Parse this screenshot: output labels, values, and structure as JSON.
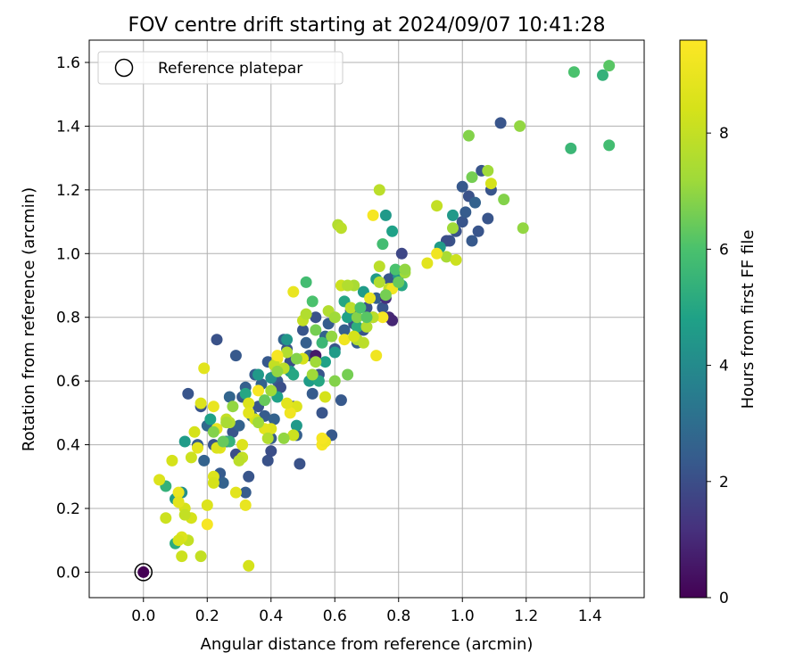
{
  "chart_data": {
    "type": "scatter",
    "title": "FOV centre drift starting at 2024/09/07 10:41:28",
    "xlabel": "Angular distance from reference (arcmin)",
    "ylabel": "Rotation from reference (arcmin)",
    "xlim": [
      -0.17,
      1.57
    ],
    "ylim": [
      -0.08,
      1.67
    ],
    "xticks": [
      0.0,
      0.2,
      0.4,
      0.6,
      0.8,
      1.0,
      1.2,
      1.4
    ],
    "yticks": [
      0.0,
      0.2,
      0.4,
      0.6,
      0.8,
      1.0,
      1.2,
      1.4,
      1.6
    ],
    "xtick_labels": [
      "0.0",
      "0.2",
      "0.4",
      "0.6",
      "0.8",
      "1.0",
      "1.2",
      "1.4"
    ],
    "ytick_labels": [
      "0.0",
      "0.2",
      "0.4",
      "0.6",
      "0.8",
      "1.0",
      "1.2",
      "1.4",
      "1.6"
    ],
    "grid": true,
    "legend": {
      "label": "Reference platepar",
      "position": "top-left"
    },
    "colorbar": {
      "label": "Hours from first FF file",
      "range": [
        0,
        9.6
      ],
      "ticks": [
        0,
        2,
        4,
        6,
        8
      ],
      "tick_labels": [
        "0",
        "2",
        "4",
        "6",
        "8"
      ],
      "colormap": "viridis"
    },
    "reference_point": {
      "x": 0.0,
      "y": 0.0,
      "hours": 0.0
    },
    "points": [
      [
        0.14,
        0.56,
        2.2
      ],
      [
        0.17,
        0.4,
        2.4
      ],
      [
        0.18,
        0.52,
        2.2
      ],
      [
        0.19,
        0.35,
        2.6
      ],
      [
        0.2,
        0.46,
        2.8
      ],
      [
        0.22,
        0.4,
        2.2
      ],
      [
        0.23,
        0.73,
        2.1
      ],
      [
        0.24,
        0.31,
        2.4
      ],
      [
        0.25,
        0.28,
        2.6
      ],
      [
        0.26,
        0.41,
        3.0
      ],
      [
        0.27,
        0.55,
        2.7
      ],
      [
        0.28,
        0.44,
        2.2
      ],
      [
        0.29,
        0.68,
        2.3
      ],
      [
        0.29,
        0.37,
        2.0
      ],
      [
        0.3,
        0.46,
        2.6
      ],
      [
        0.31,
        0.55,
        2.3
      ],
      [
        0.32,
        0.58,
        2.5
      ],
      [
        0.32,
        0.25,
        2.4
      ],
      [
        0.33,
        0.3,
        2.2
      ],
      [
        0.34,
        0.49,
        2.7
      ],
      [
        0.35,
        0.62,
        2.4
      ],
      [
        0.36,
        0.52,
        2.2
      ],
      [
        0.37,
        0.59,
        2.6
      ],
      [
        0.38,
        0.49,
        2.4
      ],
      [
        0.39,
        0.66,
        2.3
      ],
      [
        0.39,
        0.35,
        2.1
      ],
      [
        0.4,
        0.42,
        2.4
      ],
      [
        0.4,
        0.38,
        2.0
      ],
      [
        0.41,
        0.48,
        2.6
      ],
      [
        0.42,
        0.6,
        2.3
      ],
      [
        0.43,
        0.58,
        2.0
      ],
      [
        0.44,
        0.73,
        2.6
      ],
      [
        0.45,
        0.7,
        2.2
      ],
      [
        0.46,
        0.66,
        2.0
      ],
      [
        0.47,
        0.52,
        2.3
      ],
      [
        0.48,
        0.43,
        2.5
      ],
      [
        0.49,
        0.34,
        2.1
      ],
      [
        0.5,
        0.76,
        2.2
      ],
      [
        0.51,
        0.72,
        2.5
      ],
      [
        0.52,
        0.68,
        2.3
      ],
      [
        0.53,
        0.56,
        2.4
      ],
      [
        0.54,
        0.8,
        2.1
      ],
      [
        0.55,
        0.62,
        2.2
      ],
      [
        0.56,
        0.5,
        2.2
      ],
      [
        0.57,
        0.74,
        2.6
      ],
      [
        0.58,
        0.78,
        2.4
      ],
      [
        0.59,
        0.43,
        2.3
      ],
      [
        0.6,
        0.7,
        2.2
      ],
      [
        0.62,
        0.54,
        2.3
      ],
      [
        0.63,
        0.76,
        2.5
      ],
      [
        0.65,
        0.82,
        2.2
      ],
      [
        0.66,
        0.78,
        2.1
      ],
      [
        0.67,
        0.72,
        2.4
      ],
      [
        0.69,
        0.76,
        2.2
      ],
      [
        0.7,
        0.83,
        2.1
      ],
      [
        0.72,
        0.8,
        2.3
      ],
      [
        0.73,
        0.86,
        2.5
      ],
      [
        0.75,
        0.83,
        2.2
      ],
      [
        0.76,
        0.86,
        1.2
      ],
      [
        0.77,
        0.92,
        2.2
      ],
      [
        0.77,
        0.8,
        1.0
      ],
      [
        0.79,
        0.94,
        2.3
      ],
      [
        0.81,
        1.0,
        1.8
      ],
      [
        0.96,
        1.04,
        2.1
      ],
      [
        0.98,
        1.07,
        2.1
      ],
      [
        1.0,
        1.1,
        2.2
      ],
      [
        1.01,
        1.13,
        2.4
      ],
      [
        1.02,
        1.18,
        2.1
      ],
      [
        1.03,
        1.04,
        2.3
      ],
      [
        1.04,
        1.16,
        2.6
      ],
      [
        1.05,
        1.07,
        2.2
      ],
      [
        1.06,
        1.26,
        2.2
      ],
      [
        1.08,
        1.11,
        2.2
      ],
      [
        1.09,
        1.2,
        2.2
      ],
      [
        1.12,
        1.41,
        2.2
      ],
      [
        1.0,
        1.21,
        2.3
      ],
      [
        0.95,
        1.04,
        2.0
      ],
      [
        0.54,
        0.68,
        0.6
      ],
      [
        0.78,
        0.79,
        0.9
      ],
      [
        0.1,
        0.23,
        4.6
      ],
      [
        0.12,
        0.25,
        4.2
      ],
      [
        0.13,
        0.41,
        4.6
      ],
      [
        0.21,
        0.48,
        4.8
      ],
      [
        0.27,
        0.41,
        5.4
      ],
      [
        0.32,
        0.56,
        5.0
      ],
      [
        0.36,
        0.62,
        4.5
      ],
      [
        0.4,
        0.61,
        4.2
      ],
      [
        0.42,
        0.55,
        4.8
      ],
      [
        0.45,
        0.73,
        4.4
      ],
      [
        0.46,
        0.63,
        4.6
      ],
      [
        0.47,
        0.62,
        5.0
      ],
      [
        0.48,
        0.46,
        4.5
      ],
      [
        0.52,
        0.6,
        4.6
      ],
      [
        0.55,
        0.6,
        5.0
      ],
      [
        0.57,
        0.66,
        4.8
      ],
      [
        0.6,
        0.69,
        4.6
      ],
      [
        0.63,
        0.85,
        5.0
      ],
      [
        0.64,
        0.8,
        4.8
      ],
      [
        0.67,
        0.77,
        5.2
      ],
      [
        0.69,
        0.88,
        4.6
      ],
      [
        0.73,
        0.92,
        4.6
      ],
      [
        0.76,
        1.12,
        4.5
      ],
      [
        0.78,
        1.07,
        4.8
      ],
      [
        0.8,
        0.93,
        4.4
      ],
      [
        0.81,
        0.9,
        5.0
      ],
      [
        0.93,
        1.02,
        4.6
      ],
      [
        0.97,
        1.12,
        4.5
      ],
      [
        0.07,
        0.27,
        5.4
      ],
      [
        0.1,
        0.09,
        5.2
      ],
      [
        0.51,
        0.91,
        5.8
      ],
      [
        0.53,
        0.85,
        6.0
      ],
      [
        0.56,
        0.72,
        5.6
      ],
      [
        0.75,
        1.03,
        5.8
      ],
      [
        1.34,
        1.33,
        5.6
      ],
      [
        1.35,
        1.57,
        6.0
      ],
      [
        1.44,
        1.56,
        5.4
      ],
      [
        1.46,
        1.34,
        5.8
      ],
      [
        1.46,
        1.59,
        6.2
      ],
      [
        1.02,
        1.37,
        6.8
      ],
      [
        1.03,
        1.24,
        6.6
      ],
      [
        1.08,
        1.26,
        7.2
      ],
      [
        1.13,
        1.17,
        6.8
      ],
      [
        1.18,
        1.4,
        7.0
      ],
      [
        1.19,
        1.08,
        7.0
      ],
      [
        0.97,
        1.08,
        7.2
      ],
      [
        0.95,
        0.99,
        7.4
      ],
      [
        0.82,
        0.94,
        7.2
      ],
      [
        0.61,
        1.09,
        7.6
      ],
      [
        0.62,
        1.08,
        7.8
      ],
      [
        0.66,
        0.9,
        7.4
      ],
      [
        0.74,
        1.2,
        7.8
      ],
      [
        0.74,
        0.96,
        7.8
      ],
      [
        0.77,
        0.89,
        8.0
      ],
      [
        0.92,
        1.15,
        8.0
      ],
      [
        0.98,
        0.98,
        8.2
      ],
      [
        1.09,
        1.22,
        8.4
      ],
      [
        0.47,
        0.88,
        9.0
      ],
      [
        0.42,
        0.67,
        9.2
      ],
      [
        0.41,
        0.65,
        8.0
      ],
      [
        0.44,
        0.64,
        7.8
      ],
      [
        0.45,
        0.69,
        7.6
      ],
      [
        0.5,
        0.67,
        8.4
      ],
      [
        0.54,
        0.66,
        7.2
      ],
      [
        0.58,
        0.82,
        7.6
      ],
      [
        0.62,
        0.9,
        8.2
      ],
      [
        0.64,
        0.9,
        7.6
      ],
      [
        0.65,
        0.83,
        7.8
      ],
      [
        0.67,
        0.73,
        7.6
      ],
      [
        0.7,
        0.77,
        7.6
      ],
      [
        0.73,
        0.68,
        9.2
      ],
      [
        0.75,
        0.8,
        9.4
      ],
      [
        0.78,
        0.89,
        9.2
      ],
      [
        0.72,
        1.12,
        9.4
      ],
      [
        0.92,
        1.0,
        9.2
      ],
      [
        0.89,
        0.97,
        8.8
      ],
      [
        0.71,
        0.86,
        9.0
      ],
      [
        0.63,
        0.73,
        9.2
      ],
      [
        0.56,
        0.4,
        9.4
      ],
      [
        0.57,
        0.41,
        9.2
      ],
      [
        0.57,
        0.55,
        8.4
      ],
      [
        0.5,
        0.79,
        8.0
      ],
      [
        0.48,
        0.52,
        8.6
      ],
      [
        0.46,
        0.5,
        9.2
      ],
      [
        0.45,
        0.53,
        8.8
      ],
      [
        0.4,
        0.45,
        8.6
      ],
      [
        0.38,
        0.45,
        8.8
      ],
      [
        0.36,
        0.57,
        9.4
      ],
      [
        0.35,
        0.48,
        8.4
      ],
      [
        0.33,
        0.53,
        8.6
      ],
      [
        0.33,
        0.5,
        8.8
      ],
      [
        0.31,
        0.4,
        8.6
      ],
      [
        0.31,
        0.36,
        8.0
      ],
      [
        0.3,
        0.35,
        7.8
      ],
      [
        0.27,
        0.47,
        7.6
      ],
      [
        0.26,
        0.48,
        8.0
      ],
      [
        0.24,
        0.39,
        8.8
      ],
      [
        0.23,
        0.45,
        9.0
      ],
      [
        0.23,
        0.39,
        8.6
      ],
      [
        0.22,
        0.52,
        9.0
      ],
      [
        0.22,
        0.3,
        8.6
      ],
      [
        0.22,
        0.28,
        8.4
      ],
      [
        0.19,
        0.64,
        8.8
      ],
      [
        0.18,
        0.53,
        8.6
      ],
      [
        0.17,
        0.39,
        8.8
      ],
      [
        0.16,
        0.44,
        8.4
      ],
      [
        0.15,
        0.36,
        8.2
      ],
      [
        0.15,
        0.17,
        8.4
      ],
      [
        0.14,
        0.1,
        8.0
      ],
      [
        0.13,
        0.2,
        8.4
      ],
      [
        0.13,
        0.18,
        8.0
      ],
      [
        0.12,
        0.11,
        8.6
      ],
      [
        0.11,
        0.25,
        9.0
      ],
      [
        0.11,
        0.22,
        8.8
      ],
      [
        0.11,
        0.1,
        8.4
      ],
      [
        0.12,
        0.05,
        8.2
      ],
      [
        0.09,
        0.35,
        8.4
      ],
      [
        0.07,
        0.17,
        8.2
      ],
      [
        0.05,
        0.29,
        8.6
      ],
      [
        0.2,
        0.21,
        8.6
      ],
      [
        0.2,
        0.15,
        9.4
      ],
      [
        0.18,
        0.05,
        8.0
      ],
      [
        0.29,
        0.25,
        8.8
      ],
      [
        0.32,
        0.21,
        9.0
      ],
      [
        0.33,
        0.02,
        8.4
      ],
      [
        0.42,
        0.68,
        9.4
      ],
      [
        0.56,
        0.42,
        9.4
      ],
      [
        0.6,
        0.8,
        8.2
      ],
      [
        0.66,
        0.74,
        8.4
      ],
      [
        0.69,
        0.72,
        7.8
      ],
      [
        0.72,
        0.8,
        7.8
      ],
      [
        0.74,
        0.91,
        7.6
      ],
      [
        0.51,
        0.81,
        7.6
      ],
      [
        0.47,
        0.43,
        8.2
      ],
      [
        0.44,
        0.42,
        7.0
      ],
      [
        0.39,
        0.42,
        7.6
      ],
      [
        0.36,
        0.47,
        7.2
      ],
      [
        0.28,
        0.52,
        7.0
      ],
      [
        0.26,
        0.47,
        7.4
      ],
      [
        0.25,
        0.41,
        6.4
      ],
      [
        0.22,
        0.44,
        6.8
      ],
      [
        0.53,
        0.62,
        7.2
      ],
      [
        0.6,
        0.6,
        6.8
      ],
      [
        0.64,
        0.62,
        6.6
      ],
      [
        0.67,
        0.8,
        6.8
      ],
      [
        0.68,
        0.83,
        6.0
      ],
      [
        0.7,
        0.8,
        6.2
      ],
      [
        0.76,
        0.87,
        6.6
      ],
      [
        0.79,
        0.95,
        6.0
      ],
      [
        0.8,
        0.91,
        6.4
      ],
      [
        0.82,
        0.95,
        7.0
      ],
      [
        0.6,
        0.8,
        7.2
      ],
      [
        0.59,
        0.74,
        7.0
      ],
      [
        0.54,
        0.76,
        6.6
      ],
      [
        0.48,
        0.67,
        6.8
      ],
      [
        0.42,
        0.63,
        7.0
      ],
      [
        0.4,
        0.57,
        7.2
      ],
      [
        0.38,
        0.54,
        6.4
      ]
    ]
  }
}
